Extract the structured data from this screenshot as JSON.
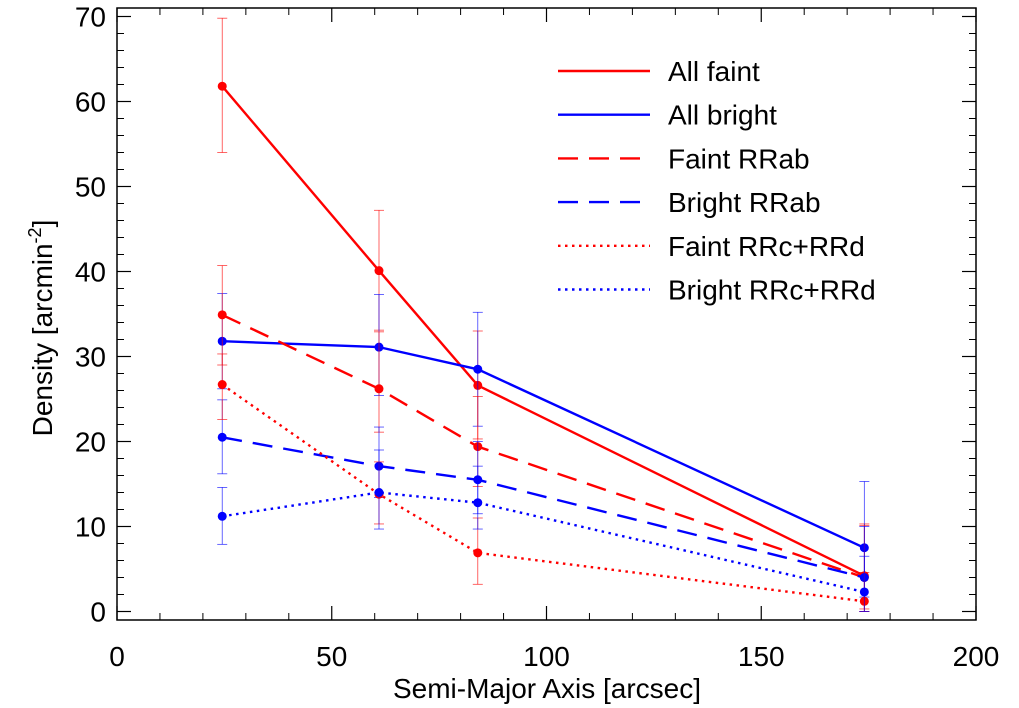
{
  "chart_data": {
    "type": "line",
    "title": "",
    "xlabel": "Semi-Major Axis [arcsec]",
    "ylabel": "Density [arcmin",
    "ylabel_sup": "-2",
    "ylabel_close": "]",
    "xlim": [
      0,
      200
    ],
    "ylim": [
      -1,
      71
    ],
    "xticks": [
      0,
      50,
      100,
      150,
      200
    ],
    "xtick_labels": [
      "0",
      "50",
      "100",
      "150",
      "200"
    ],
    "yticks": [
      0,
      10,
      20,
      30,
      40,
      50,
      60,
      70
    ],
    "ytick_labels": [
      "0",
      "10",
      "20",
      "30",
      "40",
      "50",
      "60",
      "70"
    ],
    "grid": false,
    "legend_position": "top-right",
    "x": [
      24.5,
      61,
      84,
      174
    ],
    "series": [
      {
        "name": "All faint",
        "color": "#ff0000",
        "style": "solid",
        "values": [
          61.8,
          40.1,
          26.6,
          4.2
        ],
        "err_low": [
          54.0,
          33.1,
          20.3,
          0.3
        ],
        "err_high": [
          69.8,
          47.2,
          33.0,
          10.3
        ]
      },
      {
        "name": "All bright",
        "color": "#0000ff",
        "style": "solid",
        "values": [
          31.8,
          31.1,
          28.5,
          7.5
        ],
        "err_low": [
          26.2,
          25.4,
          21.8,
          1.7
        ],
        "err_high": [
          37.4,
          37.3,
          35.2,
          15.3
        ]
      },
      {
        "name": "Faint RRab",
        "color": "#ff0000",
        "style": "dashed",
        "values": [
          34.9,
          26.2,
          19.4,
          4.0
        ],
        "err_low": [
          29.0,
          21.1,
          14.7,
          0.0
        ],
        "err_high": [
          40.7,
          32.9,
          25.3,
          10.1
        ]
      },
      {
        "name": "Bright RRab",
        "color": "#0000ff",
        "style": "dashed",
        "values": [
          20.5,
          17.1,
          15.5,
          4.0
        ],
        "err_low": [
          16.2,
          13.4,
          11.5,
          0.0
        ],
        "err_high": [
          24.9,
          21.7,
          20.0,
          10.0
        ]
      },
      {
        "name": "Faint RRc+RRd",
        "color": "#ff0000",
        "style": "dotted",
        "values": [
          26.7,
          13.8,
          6.9,
          1.2
        ],
        "err_low": [
          22.6,
          10.3,
          3.2,
          0.0
        ],
        "err_high": [
          30.3,
          17.6,
          11.0,
          4.6
        ]
      },
      {
        "name": "Bright RRc+RRd",
        "color": "#0000ff",
        "style": "dotted",
        "values": [
          11.2,
          14.0,
          12.8,
          2.3
        ],
        "err_low": [
          7.9,
          9.7,
          9.7,
          0.0
        ],
        "err_high": [
          14.6,
          19.0,
          17.1,
          6.5
        ]
      }
    ]
  }
}
